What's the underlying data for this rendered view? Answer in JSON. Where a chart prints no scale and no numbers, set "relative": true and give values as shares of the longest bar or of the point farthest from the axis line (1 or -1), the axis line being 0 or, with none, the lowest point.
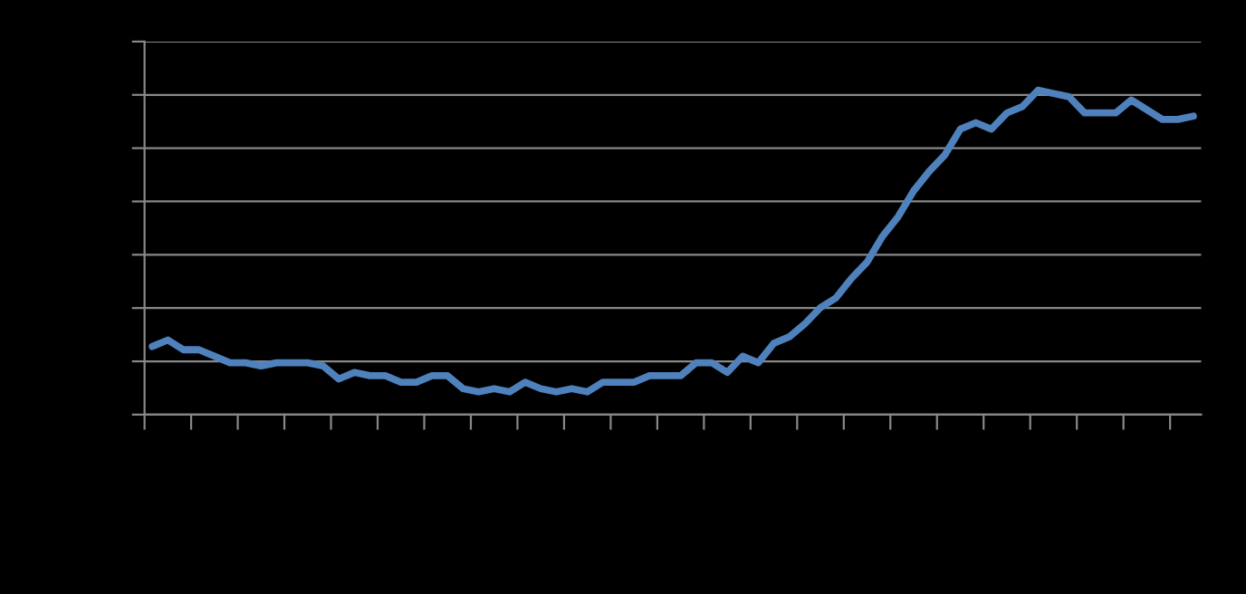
{
  "chart_data": {
    "type": "line",
    "relative": true,
    "grid": "y",
    "tick_labels": false,
    "legend": false,
    "categories": [
      null,
      null,
      null,
      null,
      null,
      null,
      null,
      null,
      null,
      null,
      null,
      null,
      null,
      null,
      null,
      null,
      null,
      null,
      null,
      null,
      null,
      null,
      null,
      null,
      null,
      null,
      null,
      null,
      null,
      null,
      null,
      null,
      null,
      null,
      null,
      null,
      null,
      null,
      null,
      null,
      null,
      null,
      null,
      null,
      null,
      null,
      null,
      null,
      null,
      null,
      null,
      null,
      null,
      null,
      null,
      null,
      null,
      null,
      null,
      null,
      null,
      null,
      null,
      null,
      null,
      null,
      null,
      null
    ],
    "series": [
      {
        "color": "#4f81bd",
        "values": [
          0.21,
          0.23,
          0.2,
          0.2,
          0.18,
          0.16,
          0.16,
          0.15,
          0.16,
          0.16,
          0.16,
          0.15,
          0.11,
          0.13,
          0.12,
          0.12,
          0.1,
          0.1,
          0.12,
          0.12,
          0.08,
          0.07,
          0.08,
          0.07,
          0.1,
          0.08,
          0.07,
          0.08,
          0.07,
          0.1,
          0.1,
          0.1,
          0.12,
          0.12,
          0.12,
          0.16,
          0.16,
          0.13,
          0.18,
          0.16,
          0.22,
          0.24,
          0.28,
          0.33,
          0.36,
          0.42,
          0.47,
          0.55,
          0.61,
          0.69,
          0.75,
          0.8,
          0.88,
          0.9,
          0.88,
          0.93,
          0.95,
          1,
          0.99,
          0.98,
          0.93,
          0.93,
          0.93,
          0.97,
          0.94,
          0.91,
          0.91,
          0.92
        ]
      }
    ]
  }
}
